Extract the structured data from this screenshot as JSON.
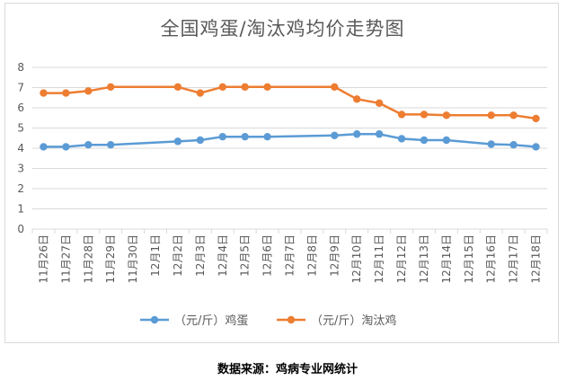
{
  "source": "数据来源：鸡病专业网统计",
  "chart_data": {
    "type": "line",
    "title": "全国鸡蛋/淘汰鸡均价走势图",
    "xlabel": "",
    "ylabel": "",
    "ylim": [
      0,
      8
    ],
    "yticks": [
      0,
      1,
      2,
      3,
      4,
      5,
      6,
      7,
      8
    ],
    "grid": true,
    "legend_position": "bottom",
    "categories": [
      "11月26日",
      "11月27日",
      "11月28日",
      "11月29日",
      "11月30日",
      "12月1日",
      "12月2日",
      "12月3日",
      "12月4日",
      "12月5日",
      "12月6日",
      "12月7日",
      "12月8日",
      "12月9日",
      "12月10日",
      "12月11日",
      "12月12日",
      "12月13日",
      "12月14日",
      "12月15日",
      "12月16日",
      "12月17日",
      "12月18日"
    ],
    "series": [
      {
        "name": "（元/斤）鸡蛋",
        "color": "#5b9bd5",
        "values": [
          4.07,
          4.07,
          4.17,
          4.17,
          null,
          null,
          4.34,
          4.4,
          4.57,
          4.57,
          4.57,
          null,
          null,
          4.63,
          4.7,
          4.7,
          4.47,
          4.4,
          4.4,
          null,
          4.2,
          4.17,
          4.07
        ]
      },
      {
        "name": "（元/斤）淘汰鸡",
        "color": "#ed7d31",
        "values": [
          6.73,
          6.73,
          6.83,
          7.03,
          null,
          null,
          7.03,
          6.73,
          7.03,
          7.03,
          7.03,
          null,
          null,
          7.03,
          6.43,
          6.23,
          5.67,
          5.67,
          5.63,
          null,
          5.63,
          5.63,
          5.47
        ]
      }
    ]
  }
}
